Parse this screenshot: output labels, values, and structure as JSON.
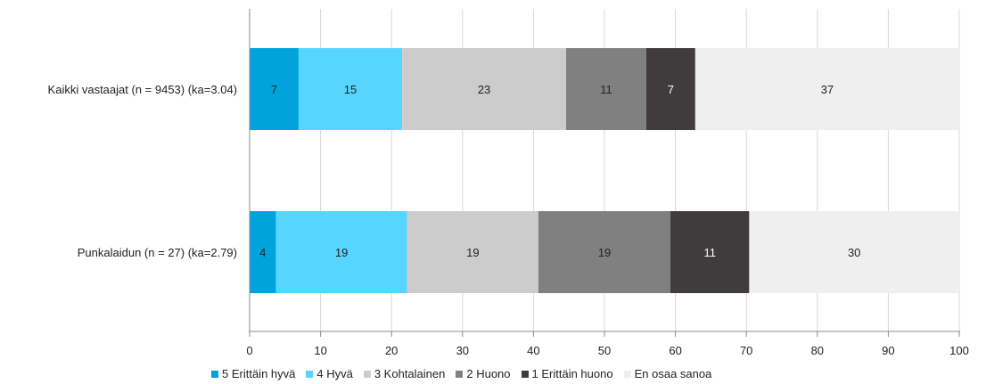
{
  "chart_data": {
    "type": "bar",
    "orientation": "horizontal",
    "stacked": true,
    "categories": [
      "Kaikki vastaajat (n = 9453) (ka=3.04)",
      "Punkalaidun (n = 27) (ka=2.79)"
    ],
    "series": [
      {
        "name": "5 Erittäin hyvä",
        "color": "#00a3dc",
        "values": [
          6.9,
          3.7
        ],
        "labels": [
          "7",
          "4"
        ],
        "label_color": "#222222"
      },
      {
        "name": "4 Hyvä",
        "color": "#57d5ff",
        "values": [
          14.6,
          18.5
        ],
        "labels": [
          "15",
          "19"
        ],
        "label_color": "#222222"
      },
      {
        "name": "3 Kohtalainen",
        "color": "#cccccc",
        "values": [
          23.1,
          18.5
        ],
        "labels": [
          "23",
          "19"
        ],
        "label_color": "#222222"
      },
      {
        "name": "2 Huono",
        "color": "#808080",
        "values": [
          11.3,
          18.6
        ],
        "labels": [
          "11",
          "19"
        ],
        "label_color": "#222222"
      },
      {
        "name": "1 Erittäin huono",
        "color": "#403c3d",
        "values": [
          6.9,
          11.1
        ],
        "labels": [
          "7",
          "11"
        ],
        "label_color": "#ffffff"
      },
      {
        "name": "En osaa sanoa",
        "color": "#efefef",
        "values": [
          37.2,
          29.6
        ],
        "labels": [
          "37",
          "30"
        ],
        "label_color": "#222222"
      }
    ],
    "xlim": [
      0,
      100
    ],
    "xticks": [
      0,
      10,
      20,
      30,
      40,
      50,
      60,
      70,
      80,
      90,
      100
    ],
    "grid": true,
    "legend": "bottom"
  }
}
